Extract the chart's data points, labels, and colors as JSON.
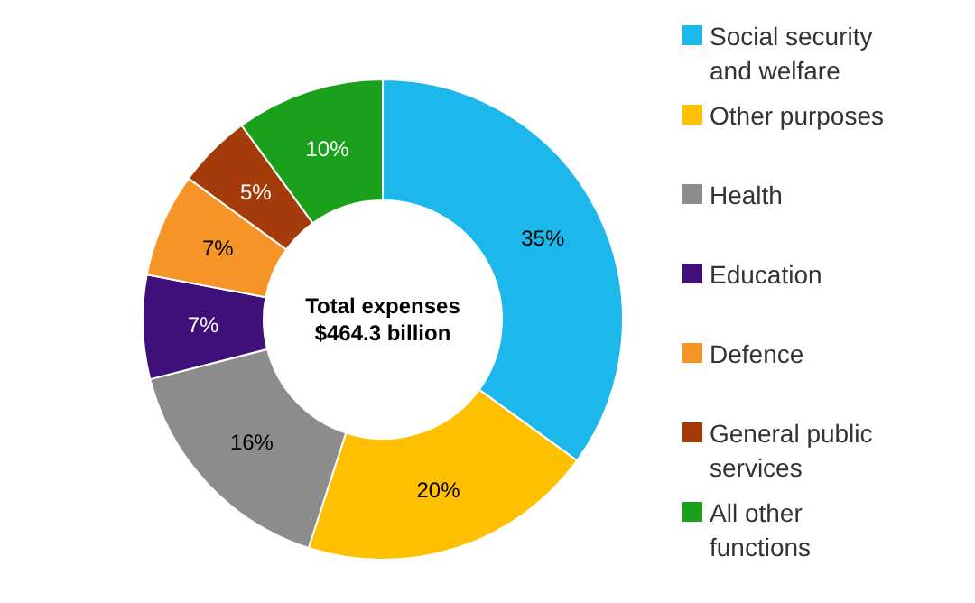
{
  "chart_data": {
    "type": "donut",
    "categories": [
      "Social security and welfare",
      "Other purposes",
      "Health",
      "Education",
      "Defence",
      "General public services",
      "All other functions"
    ],
    "values": [
      35,
      20,
      16,
      7,
      7,
      5,
      10
    ],
    "value_labels": [
      "35%",
      "20%",
      "16%",
      "7%",
      "7%",
      "5%",
      "10%"
    ],
    "colors": [
      "#1cb8ec",
      "#ffc000",
      "#8c8c8c",
      "#3f0f7a",
      "#f79428",
      "#a33b0a",
      "#1aa01a"
    ],
    "annotations": [
      "Total expenses",
      "$464.3 billion"
    ],
    "legend": "right"
  }
}
